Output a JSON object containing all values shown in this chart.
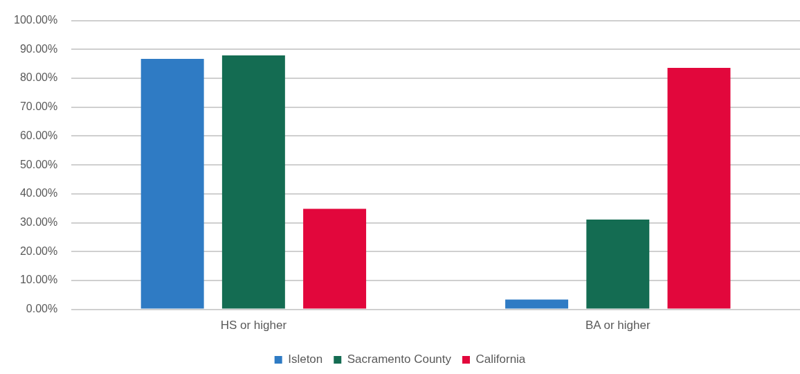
{
  "chart_data": {
    "type": "bar",
    "categories": [
      "HS or higher",
      "BA or higher"
    ],
    "series": [
      {
        "name": "Isleton",
        "color": "#2f7bc4",
        "values": [
          86.7,
          3.4
        ]
      },
      {
        "name": "Sacramento County",
        "color": "#146c52",
        "values": [
          87.9,
          31.1
        ]
      },
      {
        "name": "California",
        "color": "#e2073c",
        "values": [
          34.8,
          83.6
        ]
      }
    ],
    "ylim": [
      0,
      100
    ],
    "yticks": [
      {
        "value": 0,
        "label": "0.00%"
      },
      {
        "value": 10,
        "label": "10.00%"
      },
      {
        "value": 20,
        "label": "20.00%"
      },
      {
        "value": 30,
        "label": "30.00%"
      },
      {
        "value": 40,
        "label": "40.00%"
      },
      {
        "value": 50,
        "label": "50.00%"
      },
      {
        "value": 60,
        "label": "60.00%"
      },
      {
        "value": 70,
        "label": "70.00%"
      },
      {
        "value": 80,
        "label": "80.00%"
      },
      {
        "value": 90,
        "label": "90.00%"
      },
      {
        "value": 100,
        "label": "100.00%"
      }
    ],
    "grid": "y",
    "legend": "bottom"
  }
}
